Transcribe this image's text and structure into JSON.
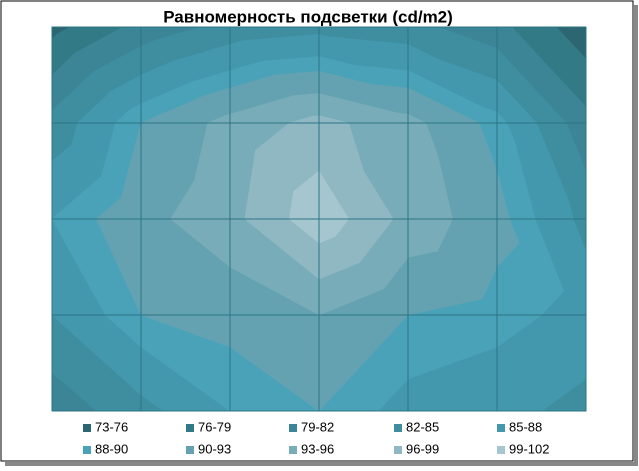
{
  "chart_data": {
    "type": "contour",
    "title": "Равномерность подсветки (cd/m2)",
    "z": [
      [
        75,
        80,
        83,
        84,
        83,
        80,
        74
      ],
      [
        83,
        90,
        94,
        97,
        94,
        89,
        80
      ],
      [
        88,
        92,
        95,
        101,
        95,
        91,
        84
      ],
      [
        85,
        90,
        91,
        93,
        90,
        89,
        87
      ],
      [
        80,
        84,
        88,
        90,
        87,
        86,
        84
      ]
    ],
    "bands": [
      {
        "label": "73-76",
        "min": 73,
        "max": 76,
        "color": "#2c6672"
      },
      {
        "label": "76-79",
        "min": 76,
        "max": 79,
        "color": "#337a87"
      },
      {
        "label": "79-82",
        "min": 79,
        "max": 82,
        "color": "#3b8597"
      },
      {
        "label": "82-85",
        "min": 82,
        "max": 85,
        "color": "#3e8ea0"
      },
      {
        "label": "85-88",
        "min": 85,
        "max": 88,
        "color": "#4398ae"
      },
      {
        "label": "88-90",
        "min": 88,
        "max": 90,
        "color": "#4aa2b8"
      },
      {
        "label": "90-93",
        "min": 90,
        "max": 93,
        "color": "#64a2b2"
      },
      {
        "label": "93-96",
        "min": 93,
        "max": 96,
        "color": "#78acb9"
      },
      {
        "label": "96-99",
        "min": 96,
        "max": 99,
        "color": "#8fb8c3"
      },
      {
        "label": "99-102",
        "min": 99,
        "max": 102,
        "color": "#a6c6cf"
      }
    ]
  }
}
